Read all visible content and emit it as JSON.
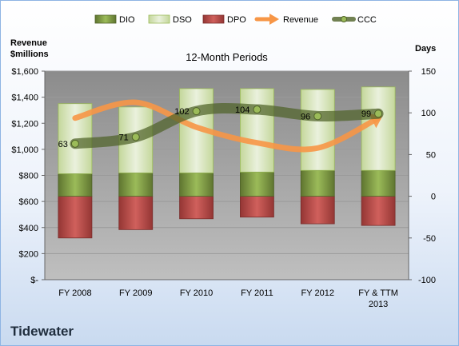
{
  "company": "Tidewater",
  "colors": {
    "dio": "#77933c",
    "dso": "#d7e4bd",
    "dpo": "#c0504d",
    "revenue": "#f79646",
    "ccc": "#4f6228",
    "plot_bg": "#a6a6a6"
  },
  "chart_data": {
    "type": "bar",
    "title": "12-Month Periods",
    "y_left_label": [
      "Revenue",
      "$millions"
    ],
    "y_right_label": "Days",
    "categories": [
      [
        "FY 2008"
      ],
      [
        "FY 2009"
      ],
      [
        "FY 2010"
      ],
      [
        "FY 2011"
      ],
      [
        "FY 2012"
      ],
      [
        "FY & TTM",
        "2013"
      ]
    ],
    "y_left": {
      "min": 0,
      "max": 1600,
      "ticks": [
        "$-",
        "$200",
        "$400",
        "$600",
        "$800",
        "$1,000",
        "$1,200",
        "$1,400",
        "$1,600"
      ]
    },
    "y_right": {
      "min": -100,
      "max": 150,
      "ticks": [
        "-100",
        "-50",
        "0",
        "50",
        "100",
        "150"
      ]
    },
    "legend": [
      "DIO",
      "DSO",
      "DPO",
      "Revenue",
      "CCC"
    ],
    "legend_position": "top",
    "series": [
      {
        "name": "DIO",
        "type": "stacked-bar",
        "axis": "right",
        "values": [
          27,
          28,
          28,
          29,
          31,
          31
        ]
      },
      {
        "name": "DSO",
        "type": "stacked-bar",
        "axis": "right",
        "values": [
          84,
          79,
          101,
          100,
          97,
          100
        ]
      },
      {
        "name": "DPO",
        "type": "bar-negative",
        "axis": "right",
        "values": [
          -50,
          -40,
          -27,
          -25,
          -33,
          -35
        ]
      },
      {
        "name": "Revenue",
        "type": "line",
        "axis": "left",
        "values": [
          1240,
          1360,
          1170,
          1050,
          1010,
          1240
        ]
      },
      {
        "name": "CCC",
        "type": "line",
        "axis": "right",
        "values": [
          63,
          71,
          102,
          104,
          96,
          99
        ],
        "labels": [
          "63",
          "71",
          "102",
          "104",
          "96",
          "99"
        ]
      }
    ]
  }
}
